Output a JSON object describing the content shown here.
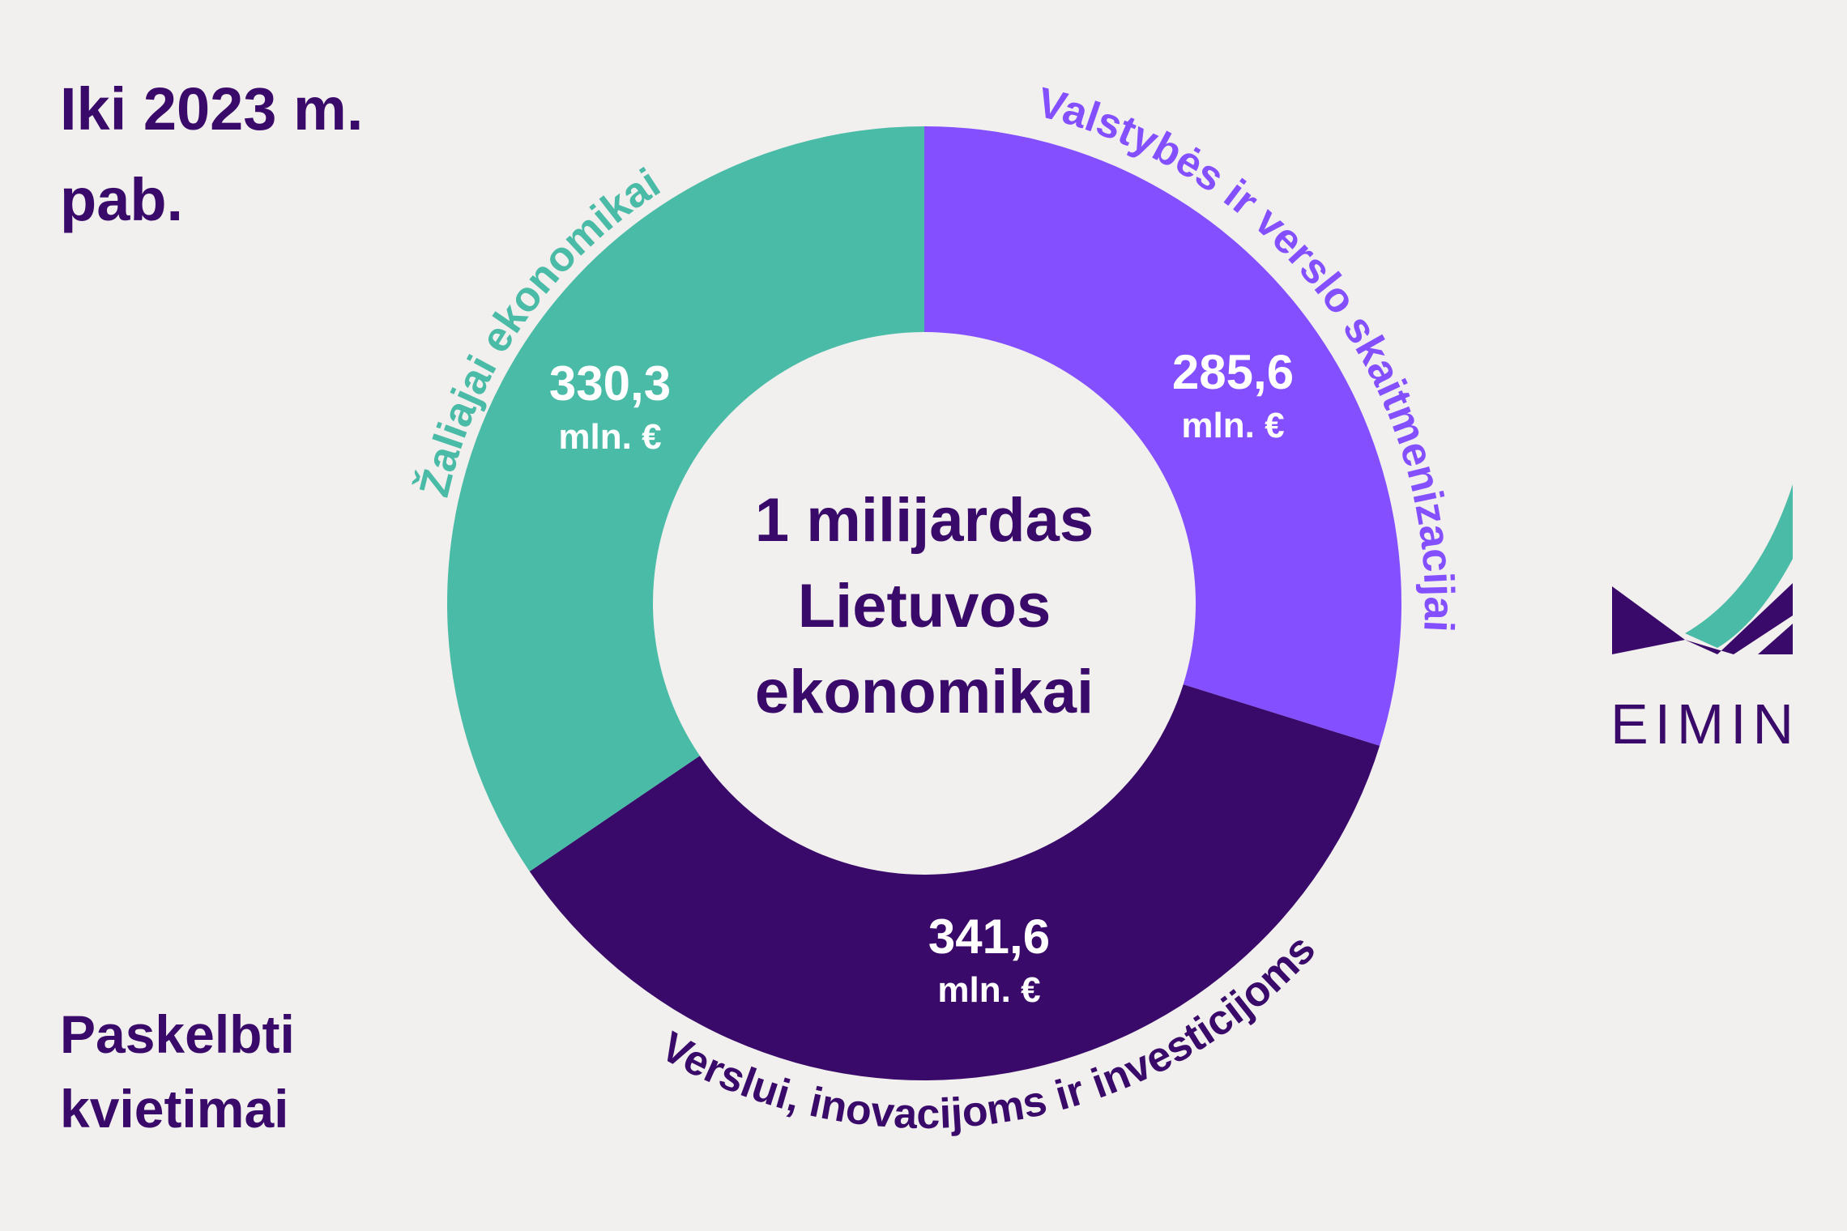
{
  "chart_data": {
    "type": "donut",
    "title": [
      "Iki 2023 m.",
      "pab."
    ],
    "footnote": [
      "Paskelbti",
      "kvietimai"
    ],
    "center_text": [
      "1 milijardas",
      "Lietuvos",
      "ekonomikai"
    ],
    "categories": [
      "Valstybės ir verslo skaitmenizacijai",
      "Verslui, inovacijoms ir investicijoms",
      "Žaliajai ekonomikai"
    ],
    "values": [
      285.6,
      341.6,
      330.3
    ],
    "value_labels": [
      "285,6",
      "341,6",
      "330,3"
    ],
    "unit": "mln. €",
    "colors": [
      "#8450ff",
      "#3a0a6a",
      "#4abba6"
    ],
    "logo": "EIMIN"
  }
}
